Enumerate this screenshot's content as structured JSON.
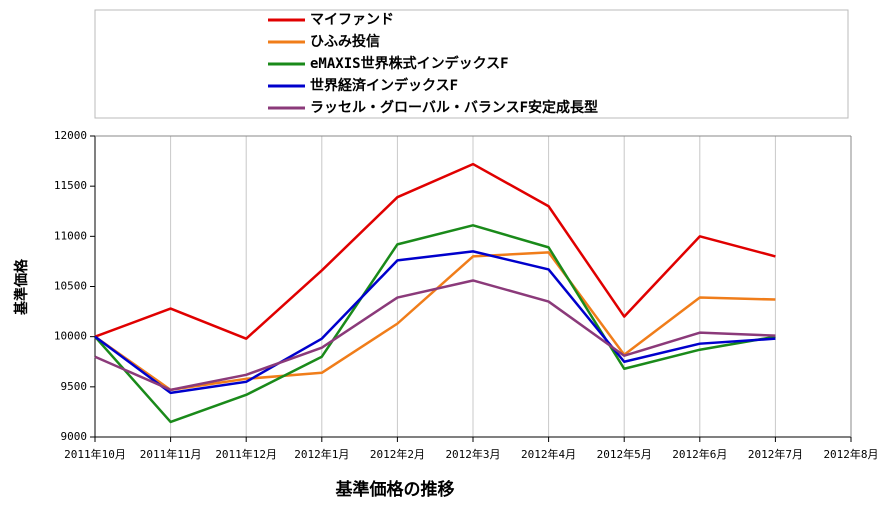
{
  "chart_data": {
    "type": "line",
    "title": "基準価格の推移",
    "y_label": "基準価格",
    "categories": [
      "2011年10月",
      "2011年11月",
      "2011年12月",
      "2012年1月",
      "2012年2月",
      "2012年3月",
      "2012年4月",
      "2012年5月",
      "2012年6月",
      "2012年7月",
      "2012年8月"
    ],
    "series": [
      {
        "name": "マイファンド",
        "color": "#e00000",
        "values": [
          10000,
          10280,
          9980,
          10660,
          11390,
          11720,
          11300,
          10200,
          11000,
          10800,
          null
        ]
      },
      {
        "name": "ひふみ投信",
        "color": "#f07d1a",
        "values": [
          10000,
          9470,
          9580,
          9640,
          10130,
          10800,
          10840,
          9820,
          10390,
          10370,
          null
        ]
      },
      {
        "name": "eMAXIS世界株式インデックスF",
        "color": "#1a8a1a",
        "values": [
          10000,
          9150,
          9420,
          9800,
          10920,
          11110,
          10890,
          9680,
          9870,
          10000,
          null
        ]
      },
      {
        "name": "世界経済インデックスF",
        "color": "#0000cc",
        "values": [
          10000,
          9440,
          9550,
          9980,
          10760,
          10850,
          10670,
          9750,
          9930,
          9980,
          null
        ]
      },
      {
        "name": "ラッセル・グローバル・バランスF安定成長型",
        "color": "#8b3a7a",
        "values": [
          9800,
          9470,
          9620,
          9890,
          10390,
          10560,
          10350,
          9810,
          10040,
          10010,
          null
        ]
      }
    ],
    "ylim": [
      9000,
      12000
    ],
    "yticks": [
      9000,
      9500,
      10000,
      10500,
      11000,
      11500,
      12000
    ],
    "xgrid": true,
    "legend": "top"
  }
}
